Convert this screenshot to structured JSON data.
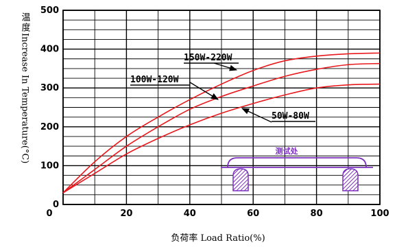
{
  "chart_data": {
    "type": "line",
    "xlabel": "负荷率 Load Ratio(%)",
    "ylabel_cn": "温度",
    "ylabel_en": "Increase In Temperature(°C)",
    "xlim": [
      0,
      100
    ],
    "ylim": [
      0,
      500
    ],
    "xticks": [
      0,
      20,
      40,
      60,
      80,
      100
    ],
    "yticks": [
      0,
      100,
      200,
      300,
      400,
      500
    ],
    "xtick_labels": [
      "0",
      "20",
      "40",
      "60",
      "80",
      "100"
    ],
    "ytick_labels": [
      "0",
      "100",
      "200",
      "300",
      "400",
      "500"
    ],
    "grid": true,
    "series": [
      {
        "name": "150W-220W",
        "color": "#e8191d",
        "x": [
          0,
          10,
          20,
          30,
          40,
          50,
          60,
          70,
          80,
          90,
          100
        ],
        "y": [
          30,
          110,
          175,
          225,
          270,
          310,
          345,
          370,
          382,
          388,
          390
        ]
      },
      {
        "name": "100W-120W",
        "color": "#e8191d",
        "x": [
          0,
          10,
          20,
          30,
          40,
          50,
          60,
          70,
          80,
          90,
          100
        ],
        "y": [
          30,
          90,
          150,
          200,
          245,
          278,
          305,
          330,
          348,
          360,
          363
        ]
      },
      {
        "name": "50W-80W",
        "color": "#e8191d",
        "x": [
          0,
          10,
          20,
          30,
          40,
          50,
          60,
          70,
          80,
          90,
          100
        ],
        "y": [
          30,
          80,
          130,
          170,
          205,
          235,
          260,
          282,
          300,
          308,
          310
        ]
      }
    ],
    "annotations": [
      {
        "text": "150W-220W",
        "series": 0
      },
      {
        "text": "100W-120W",
        "series": 1
      },
      {
        "text": "50W-80W",
        "series": 2
      }
    ],
    "test_point_label": "测试处",
    "test_point_color": "#7b2fbe"
  }
}
